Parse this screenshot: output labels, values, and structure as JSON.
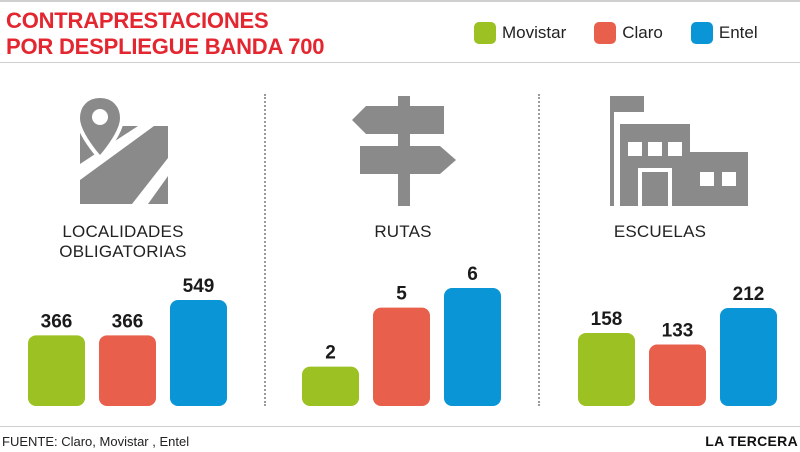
{
  "title": [
    "CONTRAPRESTACIONES",
    "POR DESPLIEGUE BANDA 700"
  ],
  "legend": [
    {
      "name": "Movistar",
      "color": "#9bc122"
    },
    {
      "name": "Claro",
      "color": "#e8604c"
    },
    {
      "name": "Entel",
      "color": "#0a95d6"
    }
  ],
  "panels": [
    {
      "title": "LOCALIDADES OBLIGATORIAS",
      "icon": "map-pin-icon"
    },
    {
      "title": "RUTAS",
      "icon": "signpost-icon"
    },
    {
      "title": "ESCUELAS",
      "icon": "school-icon"
    }
  ],
  "chart_data": [
    {
      "type": "bar",
      "title": "LOCALIDADES OBLIGATORIAS",
      "categories": [
        "Movistar",
        "Claro",
        "Entel"
      ],
      "values": [
        366,
        366,
        549
      ],
      "colors": [
        "#9bc122",
        "#e8604c",
        "#0a95d6"
      ]
    },
    {
      "type": "bar",
      "title": "RUTAS",
      "categories": [
        "Movistar",
        "Claro",
        "Entel"
      ],
      "values": [
        2,
        5,
        6
      ],
      "colors": [
        "#9bc122",
        "#e8604c",
        "#0a95d6"
      ]
    },
    {
      "type": "bar",
      "title": "ESCUELAS",
      "categories": [
        "Movistar",
        "Claro",
        "Entel"
      ],
      "values": [
        158,
        133,
        212
      ],
      "colors": [
        "#9bc122",
        "#e8604c",
        "#0a95d6"
      ]
    }
  ],
  "footer": {
    "source": "FUENTE: Claro, Movistar , Entel",
    "brand": "LA TERCERA"
  }
}
